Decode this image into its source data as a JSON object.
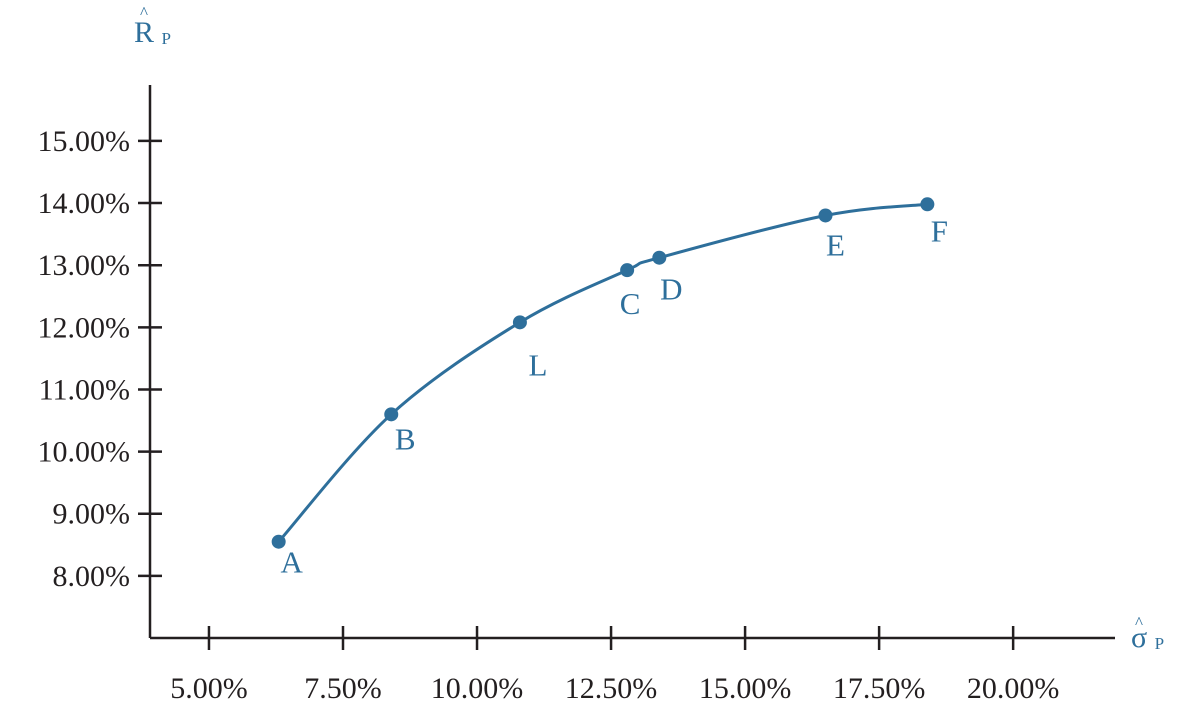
{
  "chart_data": {
    "type": "line",
    "x_axis": {
      "label": "σ",
      "label_accent": "^",
      "label_subscript": "P",
      "xlim": [
        3.9,
        21.9
      ],
      "ticks": [
        5.0,
        7.5,
        10.0,
        12.5,
        15.0,
        17.5,
        20.0
      ],
      "tick_labels": [
        "5.00%",
        "7.50%",
        "10.00%",
        "12.50%",
        "15.00%",
        "17.50%",
        "20.00%"
      ]
    },
    "y_axis": {
      "label": "R",
      "label_accent": "^",
      "label_subscript": "P",
      "ylim": [
        7.0,
        15.9
      ],
      "ticks": [
        8.0,
        9.0,
        10.0,
        11.0,
        12.0,
        13.0,
        14.0,
        15.0
      ],
      "tick_labels": [
        "8.00%",
        "9.00%",
        "10.00%",
        "11.00%",
        "12.00%",
        "13.00%",
        "14.00%",
        "15.00%"
      ]
    },
    "grid": false,
    "series": [
      {
        "points": [
          {
            "label": "A",
            "x": 6.3,
            "y": 8.55
          },
          {
            "label": "B",
            "x": 8.4,
            "y": 10.6
          },
          {
            "label": "L",
            "x": 10.8,
            "y": 12.08
          },
          {
            "label": "C",
            "x": 12.8,
            "y": 12.92
          },
          {
            "label": "D",
            "x": 13.4,
            "y": 13.12
          },
          {
            "label": "E",
            "x": 16.5,
            "y": 13.8
          },
          {
            "label": "F",
            "x": 18.4,
            "y": 13.98
          }
        ]
      }
    ],
    "colors": {
      "curve": "#2e6f9b",
      "axes": "#231f20",
      "labels": "#2e6f9b"
    }
  }
}
